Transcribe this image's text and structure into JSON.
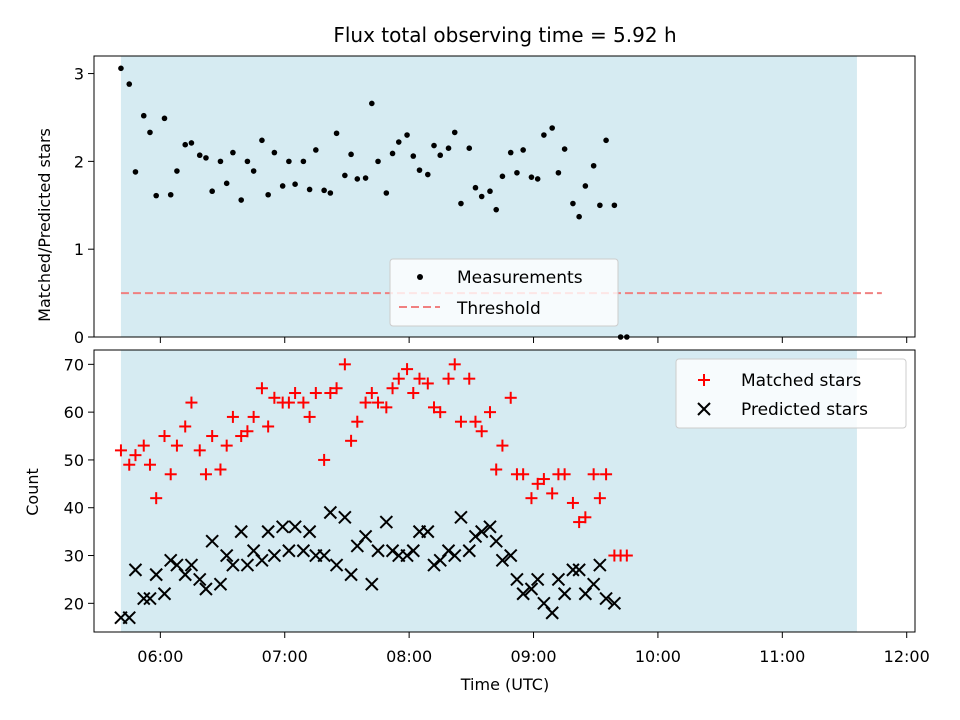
{
  "figure": {
    "title": "Flux total observing time = 5.92 h"
  },
  "chart_data": [
    {
      "type": "scatter",
      "panel": "top",
      "ylabel": "Matched/Predicted stars",
      "xlabel": "",
      "ylim": [
        0,
        3.2
      ],
      "yticks": [
        0,
        1,
        2,
        3
      ],
      "x_is_time": true,
      "xlim": [
        "05:28",
        "12:04"
      ],
      "shaded_span": [
        "05:41",
        "11:36"
      ],
      "shaded_color": "#add8e6",
      "legend_position": "lower center",
      "threshold": {
        "name": "Threshold",
        "value": 0.5,
        "x_range": [
          "05:41",
          "11:48"
        ],
        "color": "#f08080",
        "style": "dashed"
      },
      "series": [
        {
          "name": "Measurements",
          "color": "#000000",
          "marker": "dot",
          "points": [
            [
              "05:41",
              3.06
            ],
            [
              "05:45",
              2.88
            ],
            [
              "05:48",
              1.88
            ],
            [
              "05:52",
              2.52
            ],
            [
              "05:55",
              2.33
            ],
            [
              "05:58",
              1.61
            ],
            [
              "06:02",
              2.49
            ],
            [
              "06:05",
              1.62
            ],
            [
              "06:08",
              1.89
            ],
            [
              "06:12",
              2.19
            ],
            [
              "06:15",
              2.21
            ],
            [
              "06:19",
              2.07
            ],
            [
              "06:22",
              2.04
            ],
            [
              "06:25",
              1.66
            ],
            [
              "06:29",
              2.0
            ],
            [
              "06:32",
              1.75
            ],
            [
              "06:35",
              2.1
            ],
            [
              "06:39",
              1.56
            ],
            [
              "06:42",
              2.0
            ],
            [
              "06:45",
              1.89
            ],
            [
              "06:49",
              2.24
            ],
            [
              "06:52",
              1.62
            ],
            [
              "06:55",
              2.1
            ],
            [
              "06:59",
              1.72
            ],
            [
              "07:02",
              2.0
            ],
            [
              "07:05",
              1.74
            ],
            [
              "07:09",
              2.0
            ],
            [
              "07:12",
              1.68
            ],
            [
              "07:15",
              2.13
            ],
            [
              "07:19",
              1.67
            ],
            [
              "07:22",
              1.64
            ],
            [
              "07:25",
              2.32
            ],
            [
              "07:29",
              1.84
            ],
            [
              "07:32",
              2.08
            ],
            [
              "07:35",
              1.8
            ],
            [
              "07:39",
              1.81
            ],
            [
              "07:42",
              2.66
            ],
            [
              "07:45",
              2.0
            ],
            [
              "07:49",
              1.64
            ],
            [
              "07:52",
              2.09
            ],
            [
              "07:55",
              2.22
            ],
            [
              "07:59",
              2.3
            ],
            [
              "08:02",
              2.06
            ],
            [
              "08:05",
              1.9
            ],
            [
              "08:09",
              1.85
            ],
            [
              "08:12",
              2.18
            ],
            [
              "08:15",
              2.07
            ],
            [
              "08:19",
              2.15
            ],
            [
              "08:22",
              2.33
            ],
            [
              "08:25",
              1.52
            ],
            [
              "08:29",
              2.15
            ],
            [
              "08:32",
              1.7
            ],
            [
              "08:35",
              1.6
            ],
            [
              "08:39",
              1.66
            ],
            [
              "08:42",
              1.45
            ],
            [
              "08:45",
              1.83
            ],
            [
              "08:49",
              2.1
            ],
            [
              "08:52",
              1.87
            ],
            [
              "08:55",
              2.13
            ],
            [
              "08:59",
              1.82
            ],
            [
              "09:02",
              1.8
            ],
            [
              "09:05",
              2.3
            ],
            [
              "09:09",
              2.38
            ],
            [
              "09:12",
              1.87
            ],
            [
              "09:15",
              2.14
            ],
            [
              "09:19",
              1.52
            ],
            [
              "09:22",
              1.37
            ],
            [
              "09:25",
              1.72
            ],
            [
              "09:29",
              1.95
            ],
            [
              "09:32",
              1.5
            ],
            [
              "09:35",
              2.24
            ],
            [
              "09:39",
              1.5
            ],
            [
              "09:42",
              0.0
            ],
            [
              "09:45",
              0.0
            ]
          ]
        }
      ]
    },
    {
      "type": "scatter",
      "panel": "bottom",
      "ylabel": "Count",
      "xlabel": "Time (UTC)",
      "ylim": [
        14,
        73
      ],
      "yticks": [
        20,
        30,
        40,
        50,
        60,
        70
      ],
      "x_is_time": true,
      "xlim": [
        "05:28",
        "12:04"
      ],
      "xticks": [
        "06:00",
        "07:00",
        "08:00",
        "09:00",
        "10:00",
        "11:00",
        "12:00"
      ],
      "shaded_span": [
        "05:41",
        "11:36"
      ],
      "shaded_color": "#add8e6",
      "legend_position": "upper right",
      "series": [
        {
          "name": "Matched stars",
          "color": "#ff0000",
          "marker": "plus",
          "points": [
            [
              "05:41",
              52
            ],
            [
              "05:45",
              49
            ],
            [
              "05:48",
              51
            ],
            [
              "05:52",
              53
            ],
            [
              "05:55",
              49
            ],
            [
              "05:58",
              42
            ],
            [
              "06:02",
              55
            ],
            [
              "06:05",
              47
            ],
            [
              "06:08",
              53
            ],
            [
              "06:12",
              57
            ],
            [
              "06:15",
              62
            ],
            [
              "06:19",
              52
            ],
            [
              "06:22",
              47
            ],
            [
              "06:25",
              55
            ],
            [
              "06:29",
              48
            ],
            [
              "06:32",
              53
            ],
            [
              "06:35",
              59
            ],
            [
              "06:39",
              55
            ],
            [
              "06:42",
              56
            ],
            [
              "06:45",
              59
            ],
            [
              "06:49",
              65
            ],
            [
              "06:52",
              57
            ],
            [
              "06:55",
              63
            ],
            [
              "06:59",
              62
            ],
            [
              "07:02",
              62
            ],
            [
              "07:05",
              64
            ],
            [
              "07:09",
              62
            ],
            [
              "07:12",
              59
            ],
            [
              "07:15",
              64
            ],
            [
              "07:19",
              50
            ],
            [
              "07:22",
              64
            ],
            [
              "07:25",
              65
            ],
            [
              "07:29",
              70
            ],
            [
              "07:32",
              54
            ],
            [
              "07:35",
              58
            ],
            [
              "07:39",
              62
            ],
            [
              "07:42",
              64
            ],
            [
              "07:45",
              62
            ],
            [
              "07:49",
              61
            ],
            [
              "07:52",
              65
            ],
            [
              "07:55",
              67
            ],
            [
              "07:59",
              69
            ],
            [
              "08:02",
              64
            ],
            [
              "08:05",
              67
            ],
            [
              "08:09",
              66
            ],
            [
              "08:12",
              61
            ],
            [
              "08:15",
              60
            ],
            [
              "08:19",
              67
            ],
            [
              "08:22",
              70
            ],
            [
              "08:25",
              58
            ],
            [
              "08:29",
              67
            ],
            [
              "08:32",
              58
            ],
            [
              "08:35",
              56
            ],
            [
              "08:39",
              60
            ],
            [
              "08:42",
              48
            ],
            [
              "08:45",
              53
            ],
            [
              "08:49",
              63
            ],
            [
              "08:52",
              47
            ],
            [
              "08:55",
              47
            ],
            [
              "08:59",
              42
            ],
            [
              "09:02",
              45
            ],
            [
              "09:05",
              46
            ],
            [
              "09:09",
              43
            ],
            [
              "09:12",
              47
            ],
            [
              "09:15",
              47
            ],
            [
              "09:19",
              41
            ],
            [
              "09:22",
              37
            ],
            [
              "09:25",
              38
            ],
            [
              "09:29",
              47
            ],
            [
              "09:32",
              42
            ],
            [
              "09:35",
              47
            ],
            [
              "09:39",
              30
            ],
            [
              "09:42",
              30
            ],
            [
              "09:45",
              30
            ]
          ]
        },
        {
          "name": "Predicted stars",
          "color": "#000000",
          "marker": "x",
          "points": [
            [
              "05:41",
              17
            ],
            [
              "05:45",
              17
            ],
            [
              "05:48",
              27
            ],
            [
              "05:52",
              21
            ],
            [
              "05:55",
              21
            ],
            [
              "05:58",
              26
            ],
            [
              "06:02",
              22
            ],
            [
              "06:05",
              29
            ],
            [
              "06:08",
              28
            ],
            [
              "06:12",
              26
            ],
            [
              "06:15",
              28
            ],
            [
              "06:19",
              25
            ],
            [
              "06:22",
              23
            ],
            [
              "06:25",
              33
            ],
            [
              "06:29",
              24
            ],
            [
              "06:32",
              30
            ],
            [
              "06:35",
              28
            ],
            [
              "06:39",
              35
            ],
            [
              "06:42",
              28
            ],
            [
              "06:45",
              31
            ],
            [
              "06:49",
              29
            ],
            [
              "06:52",
              35
            ],
            [
              "06:55",
              30
            ],
            [
              "06:59",
              36
            ],
            [
              "07:02",
              31
            ],
            [
              "07:05",
              36
            ],
            [
              "07:09",
              31
            ],
            [
              "07:12",
              35
            ],
            [
              "07:15",
              30
            ],
            [
              "07:19",
              30
            ],
            [
              "07:22",
              39
            ],
            [
              "07:25",
              28
            ],
            [
              "07:29",
              38
            ],
            [
              "07:32",
              26
            ],
            [
              "07:35",
              32
            ],
            [
              "07:39",
              34
            ],
            [
              "07:42",
              24
            ],
            [
              "07:45",
              31
            ],
            [
              "07:49",
              37
            ],
            [
              "07:52",
              31
            ],
            [
              "07:55",
              30
            ],
            [
              "07:59",
              30
            ],
            [
              "08:02",
              31
            ],
            [
              "08:05",
              35
            ],
            [
              "08:09",
              35
            ],
            [
              "08:12",
              28
            ],
            [
              "08:15",
              29
            ],
            [
              "08:19",
              31
            ],
            [
              "08:22",
              30
            ],
            [
              "08:25",
              38
            ],
            [
              "08:29",
              31
            ],
            [
              "08:32",
              34
            ],
            [
              "08:35",
              35
            ],
            [
              "08:39",
              36
            ],
            [
              "08:42",
              33
            ],
            [
              "08:45",
              29
            ],
            [
              "08:49",
              30
            ],
            [
              "08:52",
              25
            ],
            [
              "08:55",
              22
            ],
            [
              "08:59",
              23
            ],
            [
              "09:02",
              25
            ],
            [
              "09:05",
              20
            ],
            [
              "09:09",
              18
            ],
            [
              "09:12",
              25
            ],
            [
              "09:15",
              22
            ],
            [
              "09:19",
              27
            ],
            [
              "09:22",
              27
            ],
            [
              "09:25",
              22
            ],
            [
              "09:29",
              24
            ],
            [
              "09:32",
              28
            ],
            [
              "09:35",
              21
            ],
            [
              "09:39",
              20
            ]
          ]
        }
      ]
    }
  ]
}
